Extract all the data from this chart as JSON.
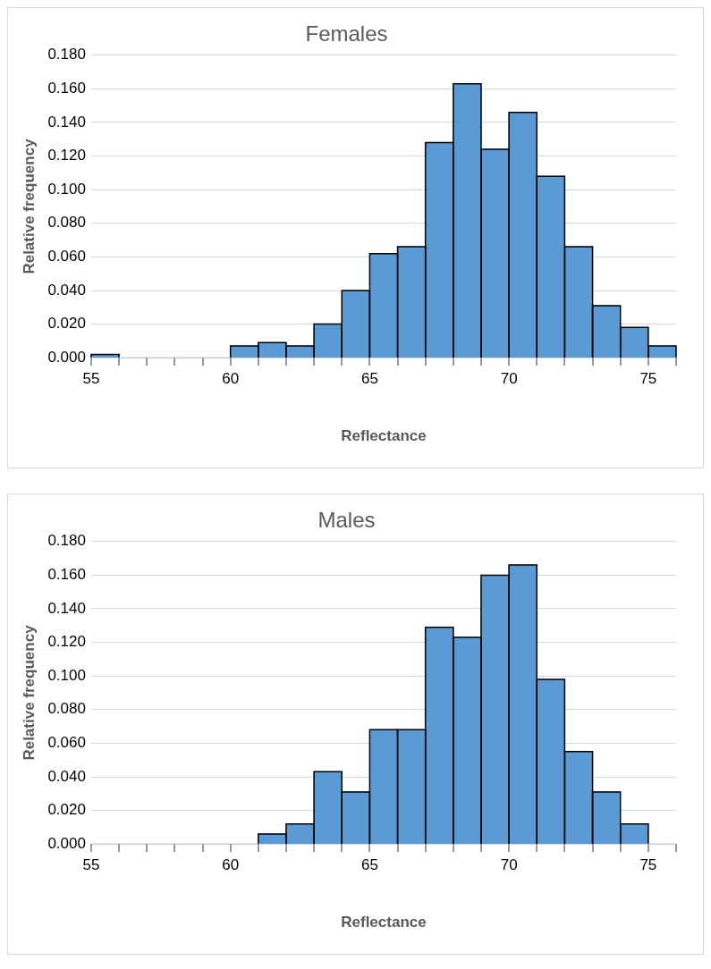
{
  "chart_data": [
    {
      "type": "histogram",
      "title": "Females",
      "xlabel": "Reflectance",
      "ylabel": "Relative frequency",
      "color": "#5b9bd5",
      "bins": [
        55,
        56,
        57,
        58,
        59,
        60,
        61,
        62,
        63,
        64,
        65,
        66,
        67,
        68,
        69,
        70,
        71,
        72,
        73,
        74,
        75,
        76
      ],
      "values": [
        0.002,
        0,
        0,
        0,
        0,
        0.007,
        0.009,
        0.007,
        0.02,
        0.04,
        0.062,
        0.066,
        0.128,
        0.163,
        0.124,
        0.146,
        0.108,
        0.066,
        0.031,
        0.018,
        0.007
      ],
      "xlim": [
        55,
        76
      ],
      "xticks": [
        55,
        {
          "value": 56,
          "label": null
        },
        {
          "value": 57,
          "label": null
        },
        {
          "value": 58,
          "label": null
        },
        {
          "value": 59,
          "label": null
        },
        60,
        {
          "value": 61,
          "label": null
        },
        {
          "value": 62,
          "label": null
        },
        {
          "value": 63,
          "label": null
        },
        {
          "value": 64,
          "label": null
        },
        65,
        {
          "value": 66,
          "label": null
        },
        {
          "value": 67,
          "label": null
        },
        {
          "value": 68,
          "label": null
        },
        {
          "value": 69,
          "label": null
        },
        70,
        {
          "value": 71,
          "label": null
        },
        {
          "value": 72,
          "label": null
        },
        {
          "value": 73,
          "label": null
        },
        {
          "value": 74,
          "label": null
        },
        75,
        {
          "value": 76,
          "label": null
        }
      ],
      "ylim": [
        0,
        0.18
      ],
      "yticks": [
        {
          "value": 0,
          "label": "0.000"
        },
        {
          "value": 0.02,
          "label": "0.020"
        },
        {
          "value": 0.04,
          "label": "0.040"
        },
        {
          "value": 0.06,
          "label": "0.060"
        },
        {
          "value": 0.08,
          "label": "0.080"
        },
        {
          "value": 0.1,
          "label": "0.100"
        },
        {
          "value": 0.12,
          "label": "0.120"
        },
        {
          "value": 0.14,
          "label": "0.140"
        },
        {
          "value": 0.16,
          "label": "0.160"
        },
        {
          "value": 0.18,
          "label": "0.180"
        }
      ],
      "grid": "y"
    },
    {
      "type": "histogram",
      "title": "Males",
      "xlabel": "Reflectance",
      "ylabel": "Relative frequency",
      "color": "#5b9bd5",
      "bins": [
        55,
        56,
        57,
        58,
        59,
        60,
        61,
        62,
        63,
        64,
        65,
        66,
        67,
        68,
        69,
        70,
        71,
        72,
        73,
        74,
        75,
        76
      ],
      "values": [
        0,
        0,
        0,
        0,
        0,
        0,
        0.006,
        0.012,
        0.043,
        0.031,
        0.068,
        0.068,
        0.129,
        0.123,
        0.16,
        0.166,
        0.098,
        0.055,
        0.031,
        0.012,
        0
      ],
      "xlim": [
        55,
        76
      ],
      "xticks": [
        55,
        {
          "value": 56,
          "label": null
        },
        {
          "value": 57,
          "label": null
        },
        {
          "value": 58,
          "label": null
        },
        {
          "value": 59,
          "label": null
        },
        60,
        {
          "value": 61,
          "label": null
        },
        {
          "value": 62,
          "label": null
        },
        {
          "value": 63,
          "label": null
        },
        {
          "value": 64,
          "label": null
        },
        65,
        {
          "value": 66,
          "label": null
        },
        {
          "value": 67,
          "label": null
        },
        {
          "value": 68,
          "label": null
        },
        {
          "value": 69,
          "label": null
        },
        70,
        {
          "value": 71,
          "label": null
        },
        {
          "value": 72,
          "label": null
        },
        {
          "value": 73,
          "label": null
        },
        {
          "value": 74,
          "label": null
        },
        75,
        {
          "value": 76,
          "label": null
        }
      ],
      "ylim": [
        0,
        0.18
      ],
      "yticks": [
        {
          "value": 0,
          "label": "0.000"
        },
        {
          "value": 0.02,
          "label": "0.020"
        },
        {
          "value": 0.04,
          "label": "0.040"
        },
        {
          "value": 0.06,
          "label": "0.060"
        },
        {
          "value": 0.08,
          "label": "0.080"
        },
        {
          "value": 0.1,
          "label": "0.100"
        },
        {
          "value": 0.12,
          "label": "0.120"
        },
        {
          "value": 0.14,
          "label": "0.140"
        },
        {
          "value": 0.16,
          "label": "0.160"
        },
        {
          "value": 0.18,
          "label": "0.180"
        }
      ],
      "grid": "y"
    }
  ]
}
